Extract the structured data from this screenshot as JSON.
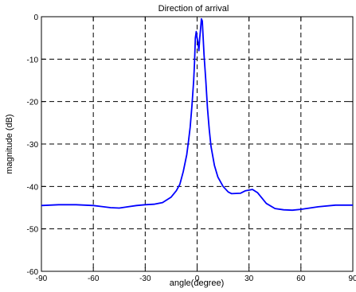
{
  "chart_data": {
    "type": "line",
    "title": "Direction of arrival",
    "xlabel": "angle(degree)",
    "ylabel": "magnitude (dB)",
    "xlim": [
      -90,
      90
    ],
    "ylim": [
      -60,
      0
    ],
    "xticks": [
      -90,
      -60,
      -30,
      0,
      30,
      60,
      90
    ],
    "yticks": [
      0,
      -10,
      -20,
      -30,
      -40,
      -50,
      -60
    ],
    "grid": true,
    "line_color": "#0000ff",
    "series": [
      {
        "x": [
          -90,
          -80,
          -70,
          -60,
          -50,
          -45,
          -40,
          -35,
          -30,
          -25,
          -20,
          -15,
          -12,
          -10,
          -8,
          -6,
          -5,
          -4,
          -3,
          -2,
          -1.5,
          -1,
          -0.5,
          0,
          0.5,
          1,
          1.5,
          2,
          2.5,
          3,
          3.5,
          4,
          5,
          6,
          7,
          8,
          10,
          12,
          15,
          18,
          20,
          25,
          28,
          32,
          35,
          40,
          45,
          50,
          55,
          60,
          65,
          70,
          80,
          90
        ],
        "values": [
          -44.5,
          -44.3,
          -44.3,
          -44.5,
          -45,
          -45.1,
          -44.8,
          -44.5,
          -44.3,
          -44.2,
          -43.8,
          -42.5,
          -41,
          -39.5,
          -36.5,
          -32.5,
          -29.5,
          -26,
          -21,
          -15,
          -11,
          -5,
          -3.5,
          -5,
          -6,
          -8,
          -5,
          -3,
          -0.5,
          -1,
          -5,
          -9,
          -15,
          -21.5,
          -26.5,
          -30.5,
          -35,
          -37.8,
          -40,
          -41.3,
          -41.7,
          -41.6,
          -41,
          -40.7,
          -41.5,
          -44,
          -45.2,
          -45.5,
          -45.6,
          -45.4,
          -45.1,
          -44.8,
          -44.4,
          -44.4
        ]
      }
    ]
  }
}
